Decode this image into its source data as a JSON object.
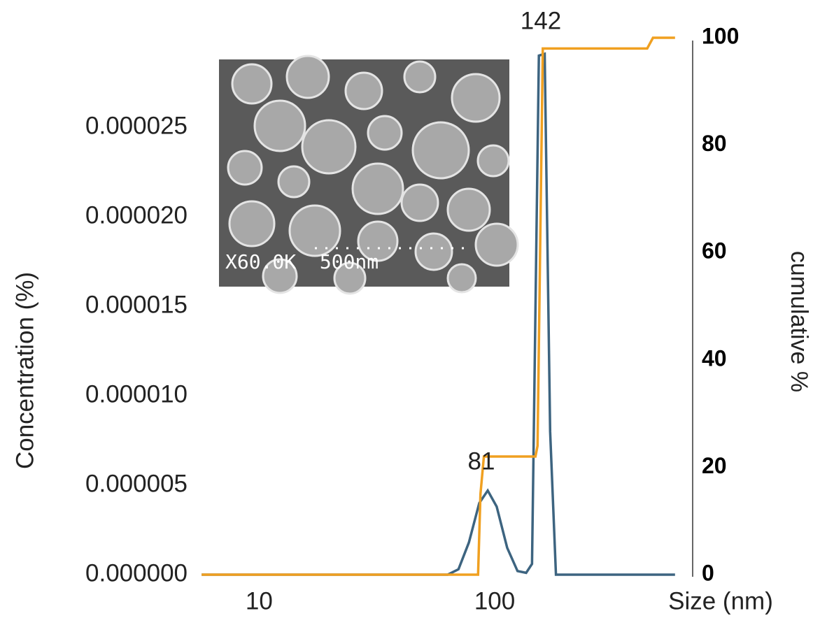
{
  "chart_data": {
    "type": "line",
    "xlabel": "Size (nm)",
    "ylabel": "Concentration (%)",
    "y2label": "cumulative %",
    "xscale": "log",
    "xlim": [
      5.5,
      600
    ],
    "xticks": [
      10,
      100
    ],
    "ylim": [
      0,
      3e-05
    ],
    "yticks": [
      {
        "value": 0,
        "label": "0.000000"
      },
      {
        "value": 5e-06,
        "label": "0.000005"
      },
      {
        "value": 1e-05,
        "label": "0.000010"
      },
      {
        "value": 1.5e-05,
        "label": "0.000015"
      },
      {
        "value": 2e-05,
        "label": "0.000020"
      },
      {
        "value": 2.5e-05,
        "label": "0.000025"
      }
    ],
    "y2lim": [
      0,
      100
    ],
    "y2ticks": [
      0,
      20,
      40,
      60,
      80,
      100
    ],
    "series": [
      {
        "name": "Concentration",
        "color": "#3d6480",
        "x": [
          5.7,
          63.2,
          70.2,
          77.7,
          86.0,
          93.4,
          102,
          113,
          125,
          136,
          144,
          154,
          163,
          172,
          182,
          583
        ],
        "values": [
          0,
          0,
          3e-07,
          1.8e-06,
          4e-06,
          4.7e-06,
          3.8e-06,
          1.5e-06,
          2e-07,
          1e-07,
          6e-07,
          2.9e-05,
          2.91e-05,
          8e-06,
          0,
          0
        ]
      },
      {
        "name": "cumulative",
        "color": "#f0a020",
        "axis": "y2",
        "x": [
          5.7,
          85,
          87,
          90,
          149,
          152,
          160,
          444,
          470,
          583
        ],
        "values": [
          0,
          0,
          15,
          22,
          22,
          24,
          98,
          98,
          100,
          100
        ]
      }
    ],
    "annotations": [
      "81",
      "142"
    ],
    "inset_label": "X60.0K  500nm"
  }
}
